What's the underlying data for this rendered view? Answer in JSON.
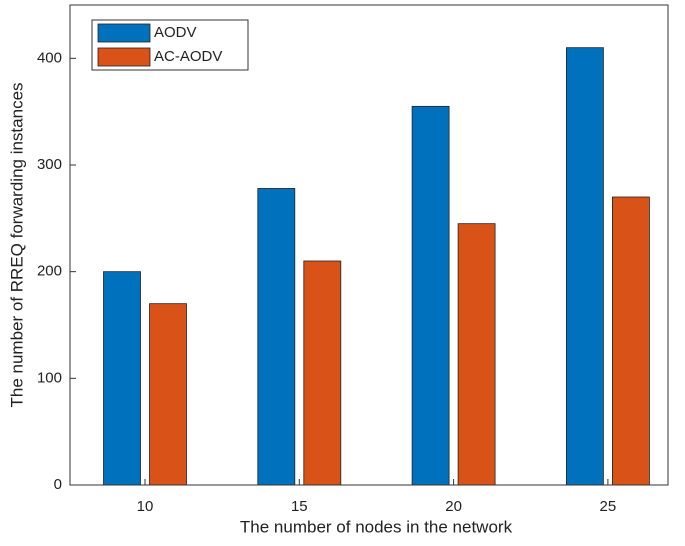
{
  "chart_data": {
    "type": "bar",
    "xlabel": "The number of nodes in the network",
    "ylabel": "The number of RREQ forwarding instances",
    "categories": [
      "10",
      "15",
      "20",
      "25"
    ],
    "series": [
      {
        "name": "AODV",
        "color": "#0072bd",
        "values": [
          200,
          278,
          355,
          410
        ]
      },
      {
        "name": "AC-AODV",
        "color": "#d95319",
        "values": [
          170,
          210,
          245,
          270
        ]
      }
    ],
    "ylim": [
      0,
      450
    ],
    "yticks": [
      0,
      100,
      200,
      300,
      400
    ],
    "legend": "top-left"
  }
}
